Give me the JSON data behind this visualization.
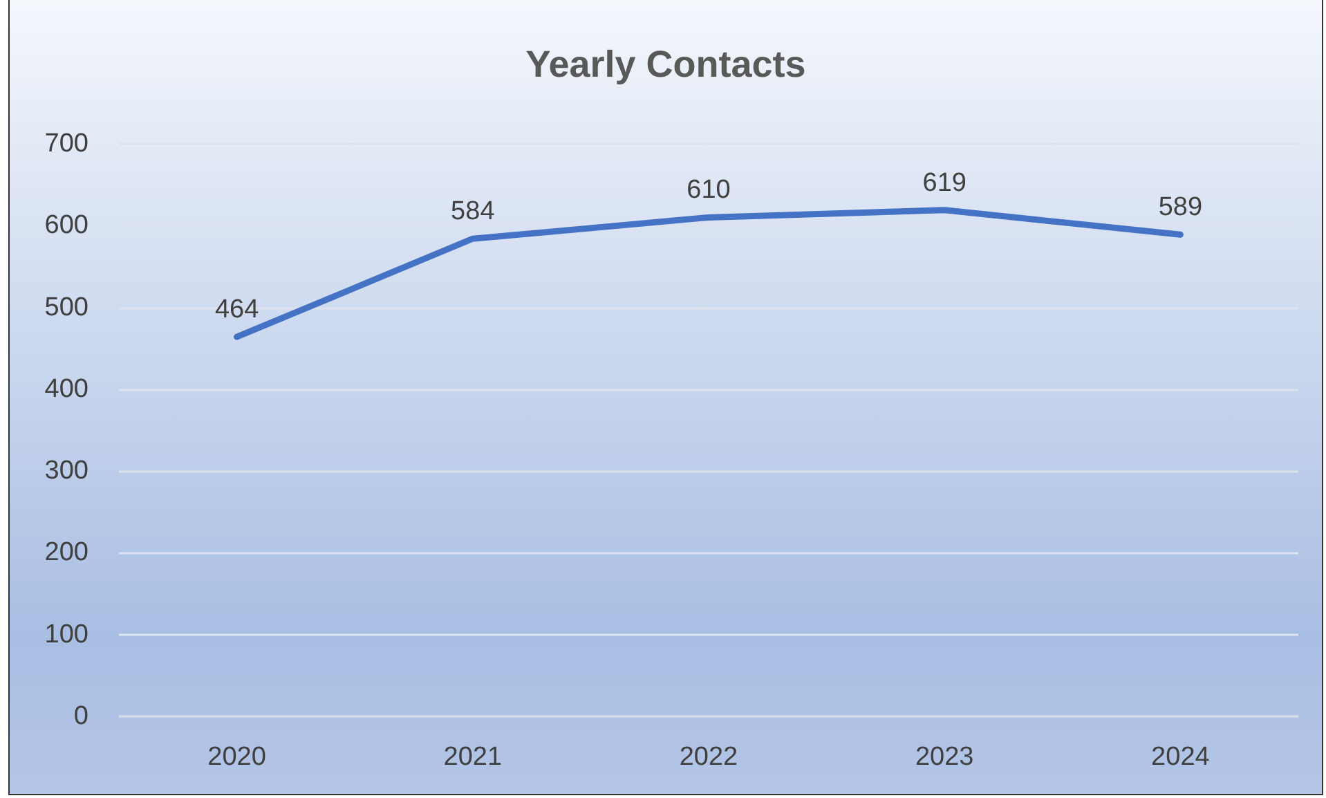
{
  "chart_data": {
    "type": "line",
    "title": "Yearly Contacts",
    "categories": [
      "2020",
      "2021",
      "2022",
      "2023",
      "2024"
    ],
    "series": [
      {
        "color": "#4472c4",
        "values": [
          464,
          584,
          610,
          619,
          589
        ]
      }
    ],
    "ylim": [
      0,
      700
    ],
    "yticks": [
      0,
      100,
      200,
      300,
      400,
      500,
      600,
      700
    ],
    "grid": "y",
    "data_labels": true,
    "marker": "none",
    "line_style": "solid"
  }
}
